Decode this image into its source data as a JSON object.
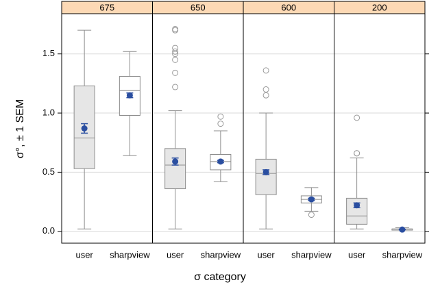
{
  "chart_data": {
    "type": "box",
    "xlabel": "σ category",
    "ylabel": "σ°, ± 1 SEM",
    "ylim": [
      -0.1,
      1.84
    ],
    "yticks": [
      {
        "value": 0,
        "label": "0.0"
      },
      0.5,
      {
        "value": 1,
        "label": "1.0"
      },
      1.5
    ],
    "grid": true,
    "strip_color": "#fdd9b5",
    "box_colors": [
      "#e6e6e6",
      "#ffffff"
    ],
    "mean_color": "#2a4ea0",
    "panels": [
      {
        "title": "675",
        "categories": [
          "user",
          "sharpview"
        ],
        "boxes": [
          {
            "whislo": 0.02,
            "q1": 0.53,
            "med": 0.79,
            "q3": 1.23,
            "whishi": 1.7,
            "mean": 0.87,
            "sem": 0.04,
            "fliers": []
          },
          {
            "whislo": 0.64,
            "q1": 0.98,
            "med": 1.19,
            "q3": 1.31,
            "whishi": 1.52,
            "mean": 1.15,
            "sem": 0.02,
            "fliers": []
          }
        ]
      },
      {
        "title": "650",
        "categories": [
          "user",
          "sharpview"
        ],
        "boxes": [
          {
            "whislo": 0.02,
            "q1": 0.36,
            "med": 0.56,
            "q3": 0.7,
            "whishi": 1.02,
            "mean": 0.59,
            "sem": 0.03,
            "fliers": [
              1.71,
              1.7,
              1.55,
              1.52,
              1.5,
              1.45,
              1.34,
              1.22
            ]
          },
          {
            "whislo": 0.42,
            "q1": 0.52,
            "med": 0.59,
            "q3": 0.65,
            "whishi": 0.85,
            "mean": 0.59,
            "sem": 0.01,
            "fliers": [
              0.97,
              0.91
            ]
          }
        ]
      },
      {
        "title": "600",
        "categories": [
          "user",
          "sharpview"
        ],
        "boxes": [
          {
            "whislo": 0.02,
            "q1": 0.31,
            "med": 0.49,
            "q3": 0.61,
            "whishi": 1.0,
            "mean": 0.5,
            "sem": 0.02,
            "fliers": [
              1.36,
              1.2,
              1.15
            ]
          },
          {
            "whislo": 0.17,
            "q1": 0.24,
            "med": 0.27,
            "q3": 0.3,
            "whishi": 0.37,
            "mean": 0.27,
            "sem": 0.01,
            "fliers": [
              0.14
            ]
          }
        ]
      },
      {
        "title": "200",
        "categories": [
          "user",
          "sharpview"
        ],
        "boxes": [
          {
            "whislo": 0.02,
            "q1": 0.06,
            "med": 0.13,
            "q3": 0.28,
            "whishi": 0.62,
            "mean": 0.22,
            "sem": 0.02,
            "fliers": [
              0.96,
              0.66,
              0.66
            ]
          },
          {
            "whislo": 0.01,
            "q1": 0.01,
            "med": 0.02,
            "q3": 0.02,
            "whishi": 0.03,
            "mean": 0.015,
            "sem": 0.003,
            "fliers": []
          }
        ]
      }
    ]
  }
}
